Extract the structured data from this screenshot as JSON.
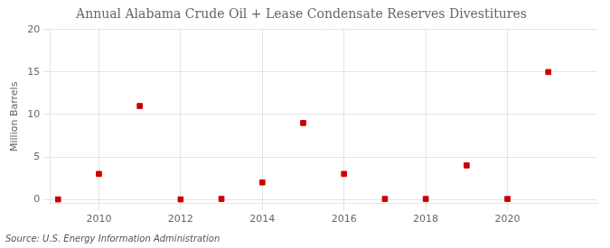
{
  "chart_data": {
    "type": "scatter",
    "title": "Annual Alabama Crude Oil + Lease Condensate Reserves Divestitures",
    "ylabel": "Million Barrels",
    "annotations": [
      "Source: U.S. Energy Information Administration"
    ],
    "x": [
      2009,
      2010,
      2011,
      2012,
      2013,
      2014,
      2015,
      2016,
      2017,
      2018,
      2019,
      2020,
      2021
    ],
    "values": [
      0.0,
      3.0,
      11.0,
      0.0,
      0.05,
      2.0,
      9.0,
      3.0,
      0.05,
      0.05,
      4.0,
      0.05,
      15.0
    ],
    "color": "#cc0000",
    "marker": "square",
    "xlim": [
      2008.8,
      2022.2
    ],
    "xticks": [
      2010,
      2012,
      2014,
      2016,
      2018,
      2020
    ],
    "ylim": [
      -0.5,
      20
    ],
    "yticks": [
      0,
      5,
      10,
      15,
      20
    ],
    "grid": true
  }
}
